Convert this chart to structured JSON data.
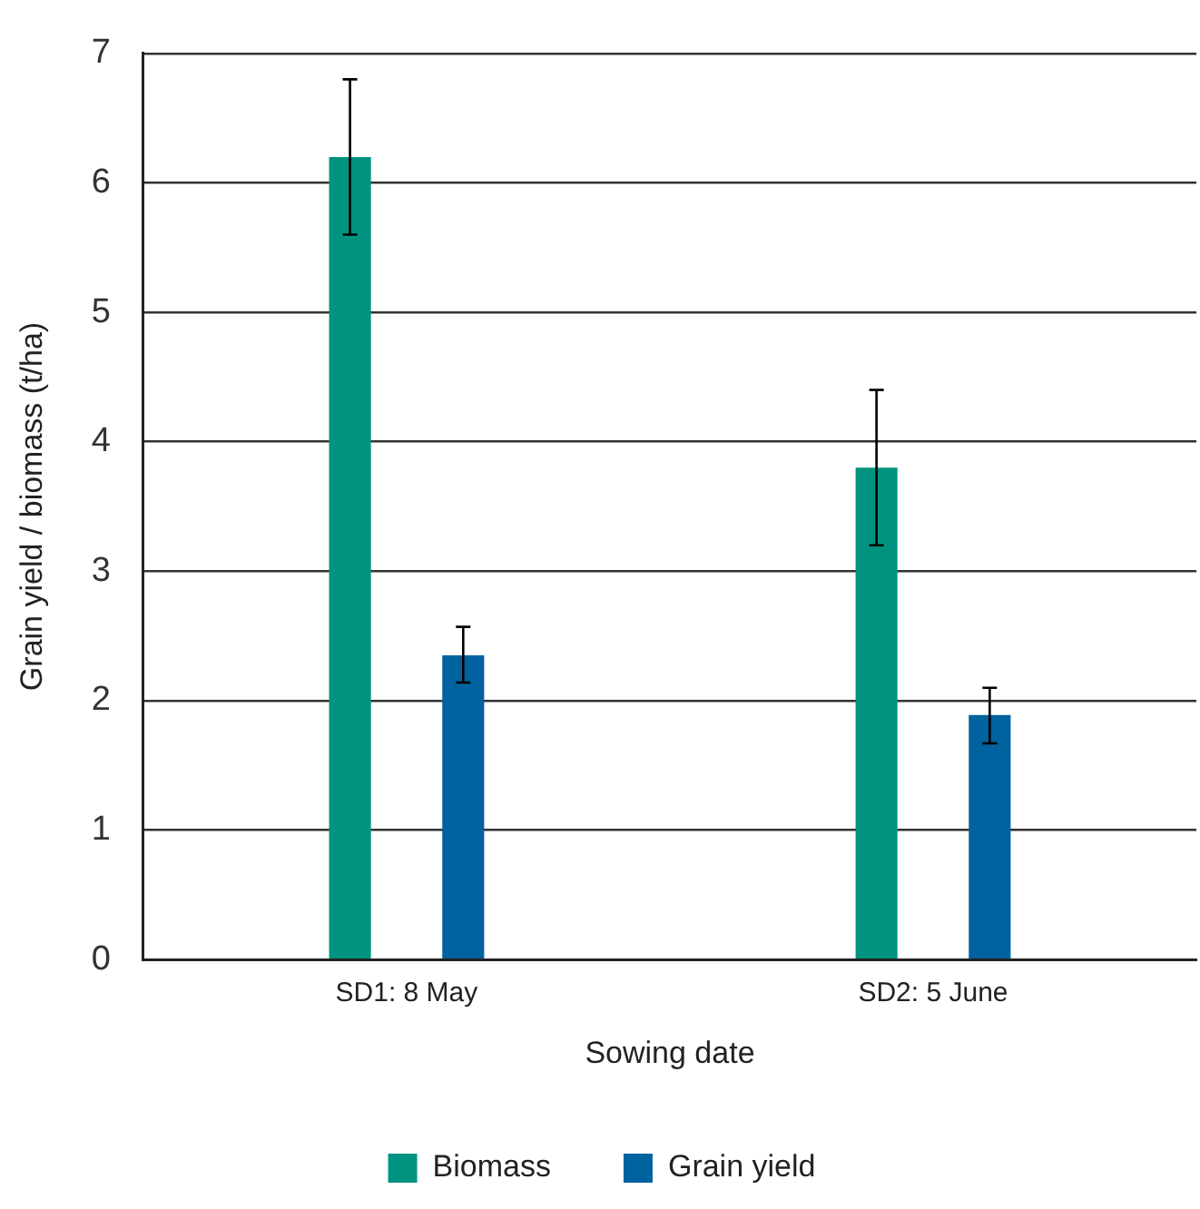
{
  "chart_data": {
    "type": "bar",
    "xlabel": "Sowing date",
    "ylabel": "Grain yield / biomass (t/ha)",
    "categories": [
      "SD1: 8 May",
      "SD2: 5 June"
    ],
    "series": [
      {
        "name": "Biomass",
        "color": "#009480",
        "values": [
          6.2,
          3.8
        ],
        "errors": [
          [
            5.6,
            6.8
          ],
          [
            3.2,
            4.4
          ]
        ]
      },
      {
        "name": "Grain yield",
        "color": "#00629e",
        "values": [
          2.35,
          1.89
        ],
        "errors": [
          [
            2.14,
            2.57
          ],
          [
            1.67,
            2.1
          ]
        ]
      }
    ],
    "ylim": [
      0,
      7
    ],
    "yticks": [
      0,
      1,
      2,
      3,
      4,
      5,
      6,
      7
    ],
    "grid": "y",
    "legend": "bottom"
  }
}
